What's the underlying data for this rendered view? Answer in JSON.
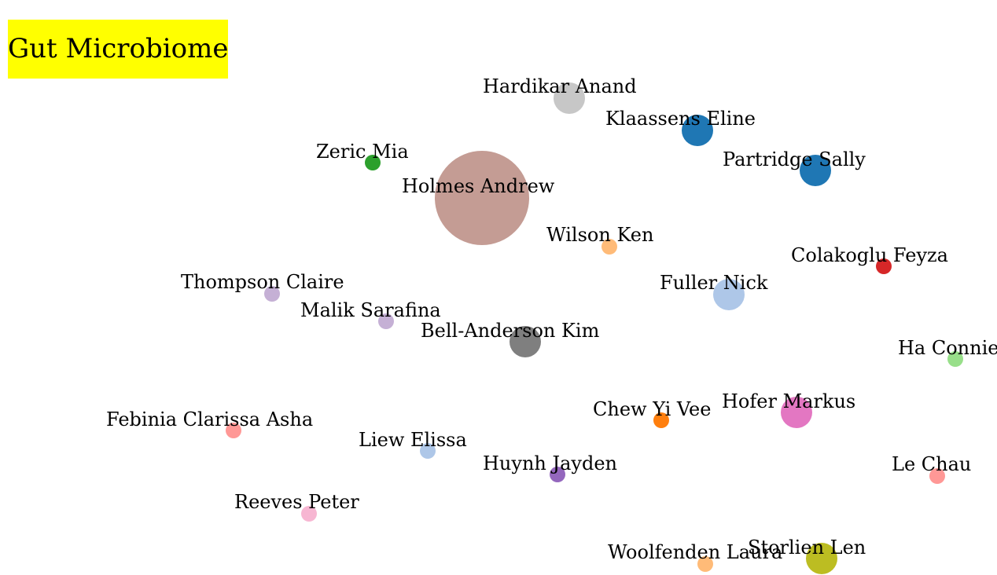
{
  "title": {
    "text": "Gut Microbiome",
    "background": "#ffff00"
  },
  "nodes": [
    {
      "label": "Hardikar Anand",
      "color": "#c7c7c7",
      "size": "medium"
    },
    {
      "label": "Klaassens Eline",
      "color": "#1f77b4",
      "size": "medium"
    },
    {
      "label": "Zeric Mia",
      "color": "#2ca02c",
      "size": "small"
    },
    {
      "label": "Partridge Sally",
      "color": "#1f77b4",
      "size": "medium"
    },
    {
      "label": "Holmes Andrew",
      "color": "#c49c94",
      "size": "huge"
    },
    {
      "label": "Wilson Ken",
      "color": "#ffbb78",
      "size": "small"
    },
    {
      "label": "Colakoglu Feyza",
      "color": "#d62728",
      "size": "small"
    },
    {
      "label": "Thompson Claire",
      "color": "#c5b0d5",
      "size": "small"
    },
    {
      "label": "Fuller Nick",
      "color": "#aec7e8",
      "size": "medium"
    },
    {
      "label": "Malik Sarafina",
      "color": "#c5b0d5",
      "size": "small"
    },
    {
      "label": "Bell-Anderson Kim",
      "color": "#7f7f7f",
      "size": "medium"
    },
    {
      "label": "Ha Connie",
      "color": "#98df8a",
      "size": "small"
    },
    {
      "label": "Febinia Clarissa Asha",
      "color": "#ff9896",
      "size": "small"
    },
    {
      "label": "Chew Yi Vee",
      "color": "#ff7f0e",
      "size": "small"
    },
    {
      "label": "Hofer Markus",
      "color": "#e377c2",
      "size": "medium"
    },
    {
      "label": "Liew Elissa",
      "color": "#aec7e8",
      "size": "small"
    },
    {
      "label": "Huynh Jayden",
      "color": "#9467bd",
      "size": "small"
    },
    {
      "label": "Le Chau",
      "color": "#ff9896",
      "size": "small"
    },
    {
      "label": "Reeves Peter",
      "color": "#f7b6d2",
      "size": "small"
    },
    {
      "label": "Woolfenden Laura",
      "color": "#ffbb78",
      "size": "small"
    },
    {
      "label": "Storlien Len",
      "color": "#bcbd22",
      "size": "medium"
    }
  ]
}
